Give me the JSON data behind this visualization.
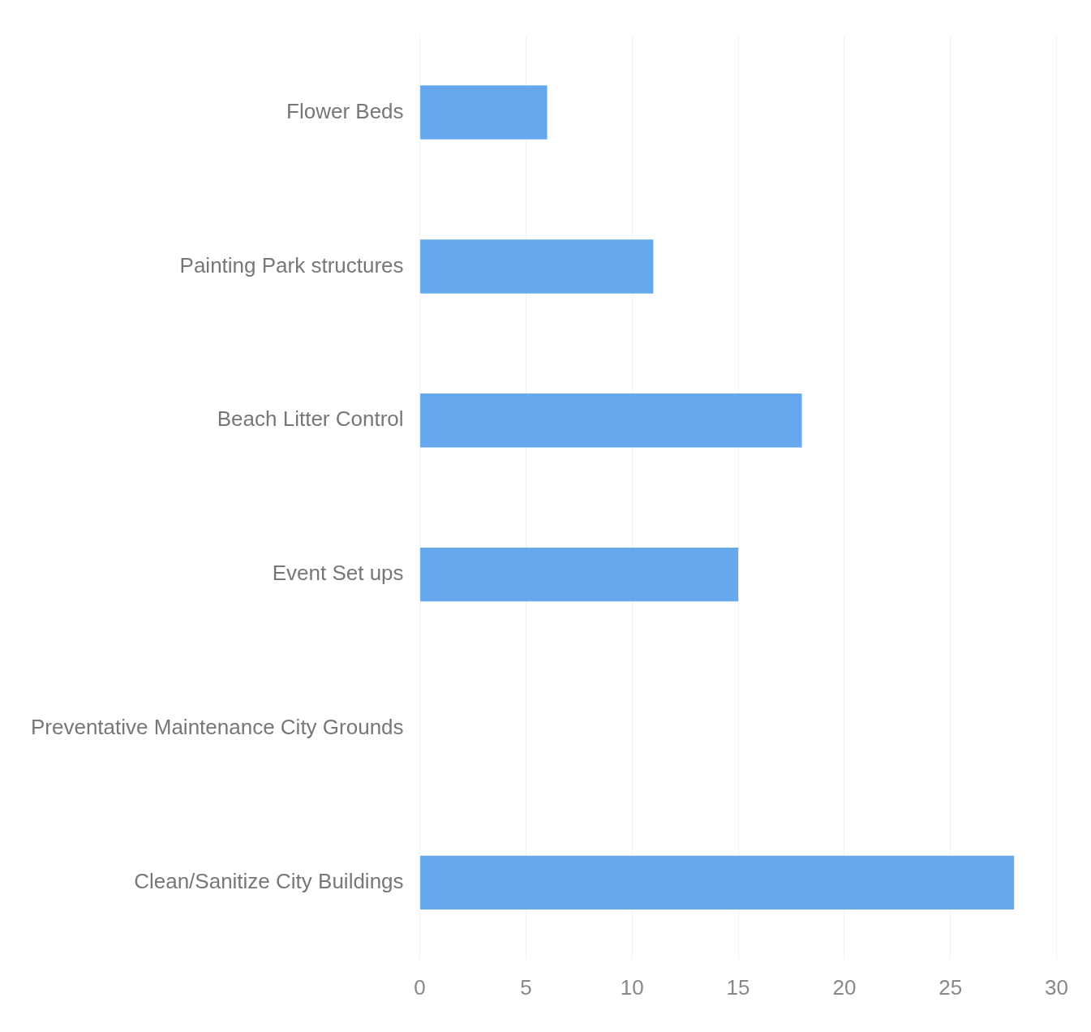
{
  "chart_data": {
    "type": "bar",
    "orientation": "horizontal",
    "categories": [
      "Flower Beds",
      "Painting Park structures",
      "Beach Litter Control",
      "Event Set ups",
      "Preventative Maintenance City Grounds",
      "Clean/Sanitize City Buildings"
    ],
    "values": [
      6,
      11,
      18,
      15,
      0,
      28
    ],
    "color": "#66a8ee",
    "xlim": [
      0,
      30
    ],
    "xticks": [
      0,
      5,
      10,
      15,
      20,
      25,
      30
    ],
    "grid": "x"
  }
}
